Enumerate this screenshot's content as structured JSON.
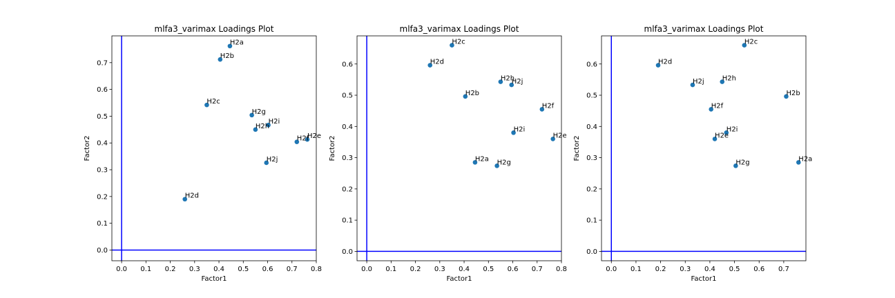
{
  "figure": {
    "background": "#ffffff"
  },
  "chart_data": [
    {
      "type": "scatter",
      "title": "mlfa3_varimax Loadings Plot",
      "xlabel": "Factor1",
      "ylabel": "Factor2",
      "xlim": [
        -0.04,
        0.8
      ],
      "ylim": [
        -0.04,
        0.8
      ],
      "xticks": [
        "0.0",
        "0.1",
        "0.2",
        "0.3",
        "0.4",
        "0.5",
        "0.6",
        "0.7",
        "0.8"
      ],
      "yticks": [
        "0.0",
        "0.1",
        "0.2",
        "0.3",
        "0.4",
        "0.5",
        "0.6",
        "0.7"
      ],
      "marker_color": "#1f77b4",
      "reference_line_color": "#0000ff",
      "points": [
        {
          "label": "H2a",
          "x": 0.445,
          "y": 0.762
        },
        {
          "label": "H2b",
          "x": 0.405,
          "y": 0.712
        },
        {
          "label": "H2c",
          "x": 0.35,
          "y": 0.542
        },
        {
          "label": "H2g",
          "x": 0.535,
          "y": 0.504
        },
        {
          "label": "H2i",
          "x": 0.603,
          "y": 0.467
        },
        {
          "label": "H2h",
          "x": 0.55,
          "y": 0.45
        },
        {
          "label": "H2e",
          "x": 0.763,
          "y": 0.413
        },
        {
          "label": "H2f",
          "x": 0.72,
          "y": 0.404
        },
        {
          "label": "H2j",
          "x": 0.595,
          "y": 0.326
        },
        {
          "label": "H2d",
          "x": 0.26,
          "y": 0.19
        }
      ]
    },
    {
      "type": "scatter",
      "title": "mlfa3_varimax Loadings Plot",
      "xlabel": "Factor1",
      "ylabel": "Factor2",
      "xlim": [
        -0.04,
        0.8
      ],
      "ylim": [
        -0.03,
        0.69
      ],
      "xticks": [
        "0.0",
        "0.1",
        "0.2",
        "0.3",
        "0.4",
        "0.5",
        "0.6",
        "0.7",
        "0.8"
      ],
      "yticks": [
        "0.0",
        "0.1",
        "0.2",
        "0.3",
        "0.4",
        "0.5",
        "0.6"
      ],
      "marker_color": "#1f77b4",
      "reference_line_color": "#0000ff",
      "points": [
        {
          "label": "H2c",
          "x": 0.35,
          "y": 0.66
        },
        {
          "label": "H2d",
          "x": 0.26,
          "y": 0.596
        },
        {
          "label": "H2h",
          "x": 0.55,
          "y": 0.543
        },
        {
          "label": "H2j",
          "x": 0.595,
          "y": 0.533
        },
        {
          "label": "H2b",
          "x": 0.405,
          "y": 0.496
        },
        {
          "label": "H2f",
          "x": 0.72,
          "y": 0.455
        },
        {
          "label": "H2i",
          "x": 0.603,
          "y": 0.38
        },
        {
          "label": "H2e",
          "x": 0.765,
          "y": 0.36
        },
        {
          "label": "H2a",
          "x": 0.445,
          "y": 0.285
        },
        {
          "label": "H2g",
          "x": 0.535,
          "y": 0.274
        }
      ]
    },
    {
      "type": "scatter",
      "title": "mlfa3_varimax Loadings Plot",
      "xlabel": "Factor1",
      "ylabel": "Factor2",
      "xlim": [
        -0.04,
        0.79
      ],
      "ylim": [
        -0.03,
        0.69
      ],
      "xticks": [
        "0.0",
        "0.1",
        "0.2",
        "0.3",
        "0.4",
        "0.5",
        "0.6",
        "0.7"
      ],
      "yticks": [
        "0.0",
        "0.1",
        "0.2",
        "0.3",
        "0.4",
        "0.5",
        "0.6"
      ],
      "marker_color": "#1f77b4",
      "reference_line_color": "#0000ff",
      "points": [
        {
          "label": "H2c",
          "x": 0.54,
          "y": 0.66
        },
        {
          "label": "H2d",
          "x": 0.19,
          "y": 0.596
        },
        {
          "label": "H2h",
          "x": 0.45,
          "y": 0.543
        },
        {
          "label": "H2j",
          "x": 0.33,
          "y": 0.533
        },
        {
          "label": "H2b",
          "x": 0.71,
          "y": 0.496
        },
        {
          "label": "H2f",
          "x": 0.405,
          "y": 0.455
        },
        {
          "label": "H2i",
          "x": 0.467,
          "y": 0.38
        },
        {
          "label": "H2e",
          "x": 0.42,
          "y": 0.36
        },
        {
          "label": "H2a",
          "x": 0.76,
          "y": 0.285
        },
        {
          "label": "H2g",
          "x": 0.505,
          "y": 0.274
        }
      ]
    }
  ]
}
